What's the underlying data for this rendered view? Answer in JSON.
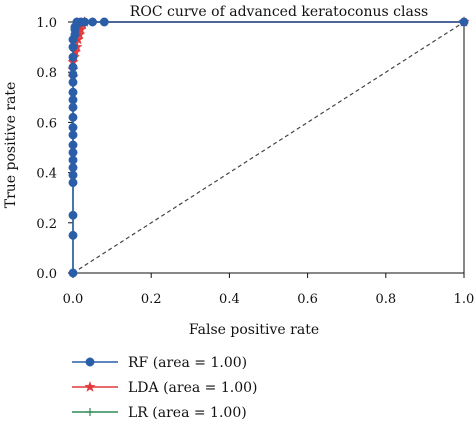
{
  "chart_data": {
    "type": "line",
    "title": "ROC curve of advanced keratoconus class",
    "xlabel": "False positive rate",
    "ylabel": "True positive rate",
    "xlim": [
      0,
      1.0
    ],
    "ylim": [
      0,
      1.0
    ],
    "xticks": [
      "0.0",
      "0.2",
      "0.4",
      "0.6",
      "0.8",
      "1.0"
    ],
    "yticks": [
      "0.0",
      "0.2",
      "0.4",
      "0.6",
      "0.8",
      "1.0"
    ],
    "grid": false,
    "legend_position": "bottom-left, below the axes",
    "series": [
      {
        "name": "RF (area = 1.00)",
        "color": "#2a5ea8",
        "marker": "circle",
        "x": [
          0,
          0,
          0,
          0,
          0,
          0,
          0,
          0,
          0,
          0,
          0,
          0,
          0,
          0,
          0,
          0,
          0,
          0,
          0,
          0,
          0,
          0.005,
          0.005,
          0.005,
          0.01,
          0.01,
          0.02,
          0.03,
          0.05,
          0.08,
          1.0
        ],
        "y": [
          0,
          0.15,
          0.23,
          0.36,
          0.39,
          0.42,
          0.45,
          0.48,
          0.51,
          0.55,
          0.58,
          0.62,
          0.66,
          0.69,
          0.72,
          0.76,
          0.79,
          0.82,
          0.86,
          0.9,
          0.93,
          0.95,
          0.97,
          0.98,
          0.99,
          1.0,
          1.0,
          1.0,
          1.0,
          1.0,
          1.0
        ]
      },
      {
        "name": "LDA (area = 1.00)",
        "color": "#e03a3a",
        "marker": "star",
        "x": [
          0,
          0,
          0,
          0.003,
          0.006,
          0.01,
          0.013,
          0.017,
          0.02,
          0.025,
          0.03,
          1.0
        ],
        "y": [
          0.78,
          0.81,
          0.84,
          0.86,
          0.88,
          0.9,
          0.93,
          0.95,
          0.97,
          0.99,
          1.0,
          1.0
        ]
      },
      {
        "name": "LR (area = 1.00)",
        "color": "#2e8b57",
        "marker": "plus",
        "x": [
          0,
          0,
          0,
          0,
          0.005,
          0.01,
          0.015,
          0.02,
          1.0
        ],
        "y": [
          0,
          0.8,
          0.85,
          0.9,
          0.93,
          0.96,
          0.98,
          1.0,
          1.0
        ]
      }
    ],
    "reference_line": {
      "style": "dashed",
      "color": "#444444",
      "x": [
        0,
        1
      ],
      "y": [
        0,
        1
      ]
    }
  }
}
